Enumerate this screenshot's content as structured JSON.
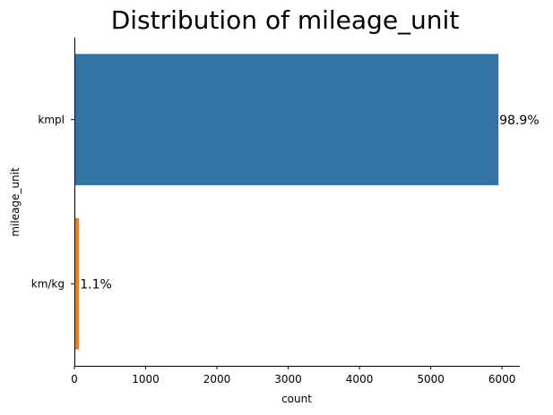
{
  "chart_data": {
    "type": "bar",
    "orientation": "horizontal",
    "title": "Distribution of mileage_unit",
    "xlabel": "count",
    "ylabel": "mileage_unit",
    "categories": [
      "kmpl",
      "km/kg"
    ],
    "values": [
      5950,
      66
    ],
    "data_labels": [
      "98.9%",
      "1.1%"
    ],
    "colors": [
      "#3274a1",
      "#e1812c"
    ],
    "xlim": [
      0,
      6250
    ],
    "xticks": [
      0,
      1000,
      2000,
      3000,
      4000,
      5000,
      6000
    ],
    "xtick_labels": [
      "0",
      "1000",
      "2000",
      "3000",
      "4000",
      "5000",
      "6000"
    ],
    "grid": false,
    "legend": "none"
  }
}
